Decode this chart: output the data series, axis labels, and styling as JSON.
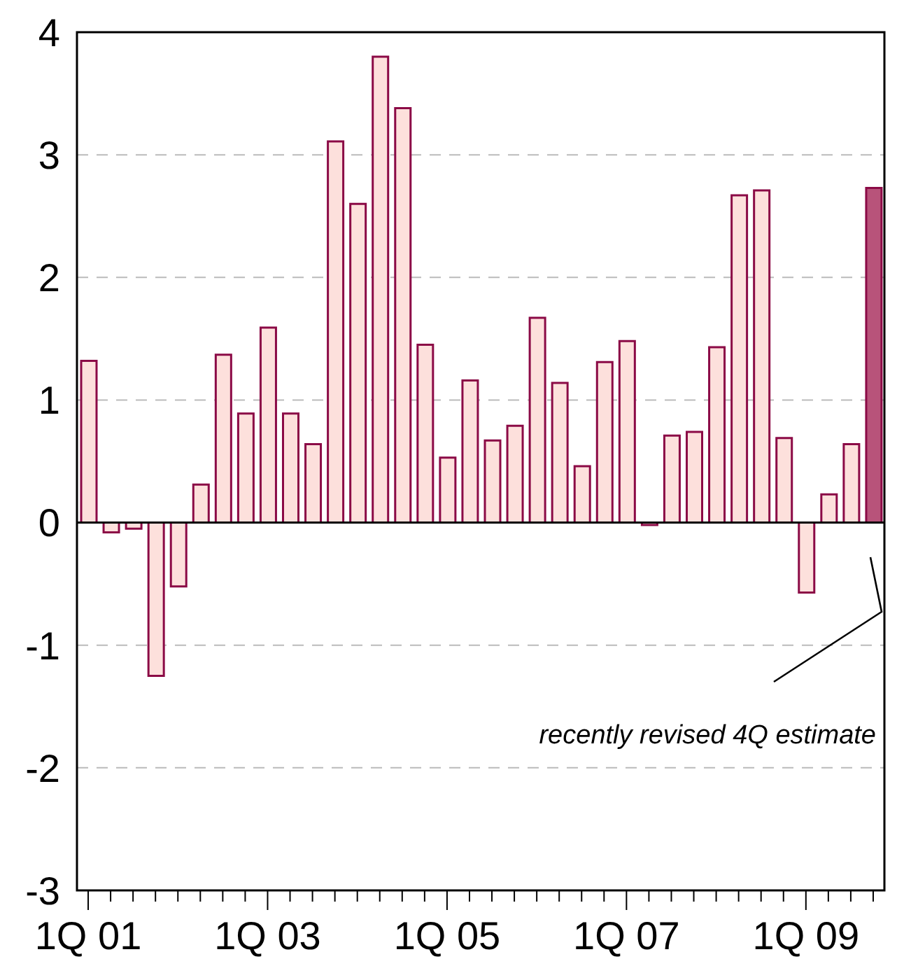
{
  "chart_data": {
    "type": "bar",
    "categories": [
      "1Q 01",
      null,
      null,
      null,
      null,
      null,
      null,
      null,
      "1Q 03",
      null,
      null,
      null,
      null,
      null,
      null,
      null,
      "1Q 05",
      null,
      null,
      null,
      null,
      null,
      null,
      null,
      "1Q 07",
      null,
      null,
      null,
      null,
      null,
      null,
      null,
      "1Q 09",
      null,
      null,
      null
    ],
    "values": [
      1.32,
      -0.08,
      -0.05,
      -1.25,
      -0.52,
      0.31,
      1.37,
      0.89,
      1.59,
      0.89,
      0.64,
      3.11,
      2.6,
      3.8,
      3.38,
      1.45,
      0.53,
      1.16,
      0.67,
      0.79,
      1.67,
      1.14,
      0.46,
      1.31,
      1.48,
      -0.02,
      0.71,
      0.74,
      1.43,
      2.67,
      2.71,
      0.69,
      -0.57,
      0.23,
      0.64,
      2.73
    ],
    "colors": [
      "#fde0dc",
      "#fde0dc",
      "#fde0dc",
      "#fde0dc",
      "#fde0dc",
      "#fde0dc",
      "#fde0dc",
      "#fde0dc",
      "#fde0dc",
      "#fde0dc",
      "#fde0dc",
      "#fde0dc",
      "#fde0dc",
      "#fde0dc",
      "#fde0dc",
      "#fde0dc",
      "#fde0dc",
      "#fde0dc",
      "#fde0dc",
      "#fde0dc",
      "#fde0dc",
      "#fde0dc",
      "#fde0dc",
      "#fde0dc",
      "#fde0dc",
      "#fde0dc",
      "#fde0dc",
      "#fde0dc",
      "#fde0dc",
      "#fde0dc",
      "#fde0dc",
      "#fde0dc",
      "#fde0dc",
      "#fde0dc",
      "#fde0dc",
      "#b8537a"
    ],
    "ylim": [
      -3,
      4
    ],
    "yticks": [
      -3,
      -2,
      -1,
      0,
      1,
      2,
      3,
      4
    ],
    "grid": "y",
    "ref_lines": [
      {
        "axis": "y",
        "value": 0,
        "color": "#000000"
      }
    ],
    "annotations": [
      "recently revised 4Q estimate"
    ]
  }
}
